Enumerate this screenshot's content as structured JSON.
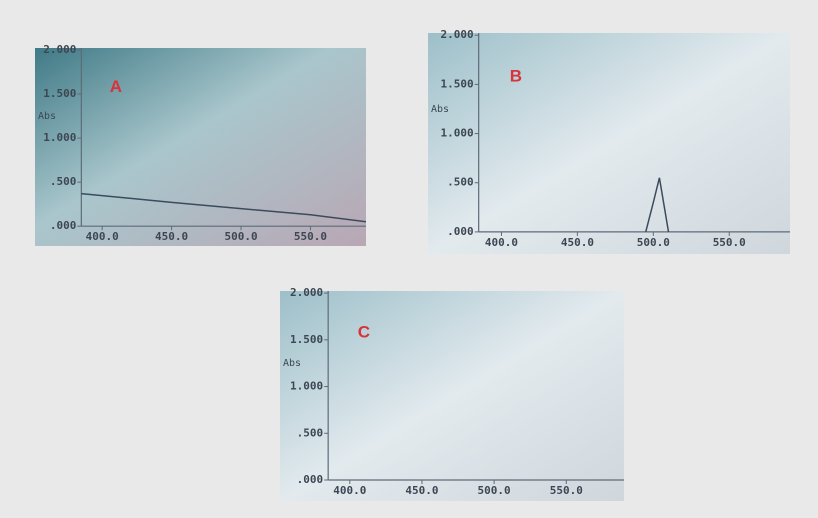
{
  "chart_data": [
    {
      "type": "line",
      "title": "A",
      "y_label": "Abs",
      "xlim": [
        385,
        590
      ],
      "ylim": [
        0,
        2
      ],
      "xticks": [
        {
          "value": 400,
          "label": "400.0"
        },
        {
          "value": 450,
          "label": "450.0"
        },
        {
          "value": 500,
          "label": "500.0"
        },
        {
          "value": 550,
          "label": "550.0"
        }
      ],
      "yticks": [
        {
          "value": 0,
          "label": ".000"
        },
        {
          "value": 0.5,
          "label": ".500"
        },
        {
          "value": 1,
          "label": "1.000"
        },
        {
          "value": 1.5,
          "label": "1.500"
        },
        {
          "value": 2,
          "label": "2.000"
        }
      ],
      "series": [
        {
          "color": "#3c4b5c",
          "x": [
            385,
            450,
            500,
            550,
            590
          ],
          "values": [
            0.37,
            0.27,
            0.2,
            0.13,
            0.05
          ]
        }
      ]
    },
    {
      "type": "line",
      "title": "B",
      "y_label": "Abs",
      "xlim": [
        385,
        590
      ],
      "ylim": [
        0,
        2
      ],
      "xticks": [
        {
          "value": 400,
          "label": "400.0"
        },
        {
          "value": 450,
          "label": "450.0"
        },
        {
          "value": 500,
          "label": "500.0"
        },
        {
          "value": 550,
          "label": "550.0"
        }
      ],
      "yticks": [
        {
          "value": 0,
          "label": ".000"
        },
        {
          "value": 0.5,
          "label": ".500"
        },
        {
          "value": 1,
          "label": "1.000"
        },
        {
          "value": 1.5,
          "label": "1.500"
        },
        {
          "value": 2,
          "label": "2.000"
        }
      ],
      "series": [
        {
          "color": "#3c4b5c",
          "x": [
            495,
            500,
            504,
            510
          ],
          "values": [
            0,
            0.3,
            0.55,
            0
          ]
        }
      ]
    },
    {
      "type": "line",
      "title": "C",
      "y_label": "Abs",
      "xlim": [
        385,
        590
      ],
      "ylim": [
        0,
        2
      ],
      "xticks": [
        {
          "value": 400,
          "label": "400.0"
        },
        {
          "value": 450,
          "label": "450.0"
        },
        {
          "value": 500,
          "label": "500.0"
        },
        {
          "value": 550,
          "label": "550.0"
        }
      ],
      "yticks": [
        {
          "value": 0,
          "label": ".000"
        },
        {
          "value": 0.5,
          "label": ".500"
        },
        {
          "value": 1,
          "label": "1.000"
        },
        {
          "value": 1.5,
          "label": "1.500"
        },
        {
          "value": 2,
          "label": "2.000"
        }
      ],
      "series": []
    }
  ]
}
